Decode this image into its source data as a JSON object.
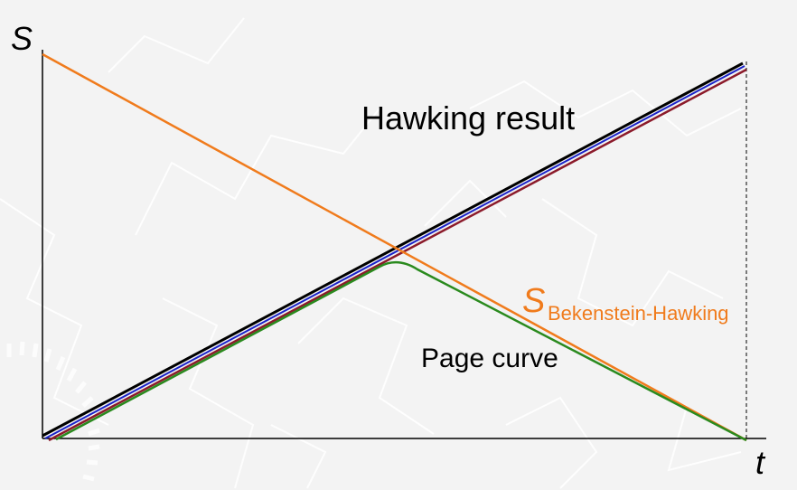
{
  "axes": {
    "y_label": "S",
    "x_label": "t"
  },
  "labels": {
    "hawking": "Hawking result",
    "page_curve": "Page curve",
    "bh_main": "S",
    "bh_sub": "Bekenstein-Hawking"
  },
  "colors": {
    "background": "#f3f3f3",
    "axis": "#000000",
    "bekenstein_hawking": "#f07b1c",
    "page_curve": "#2a8a1e",
    "hawking_black": "#000000",
    "hawking_blue": "#1a22c8",
    "hawking_red": "#8b1a2a",
    "background_pattern": "#ffffff"
  }
}
